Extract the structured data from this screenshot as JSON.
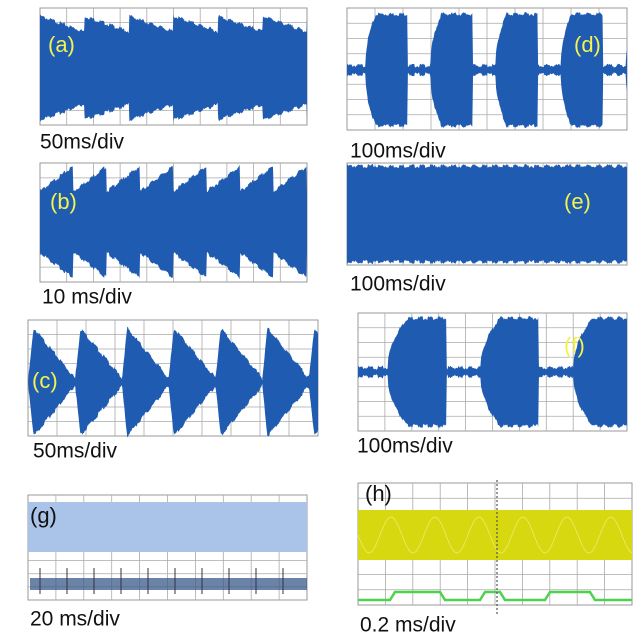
{
  "panels": [
    {
      "label": "(a)",
      "scale": "50ms/div"
    },
    {
      "label": "(b)",
      "scale": "10 ms/div"
    },
    {
      "label": "(c)",
      "scale": "50ms/div"
    },
    {
      "label": "(d)",
      "scale": "100ms/div"
    },
    {
      "label": "(e)",
      "scale": "100ms/div"
    },
    {
      "label": "(f)",
      "scale": "100ms/div"
    },
    {
      "label": "(g)",
      "scale": "20 ms/div"
    },
    {
      "label": "(h)",
      "scale": "0.2 ms/div"
    }
  ]
}
